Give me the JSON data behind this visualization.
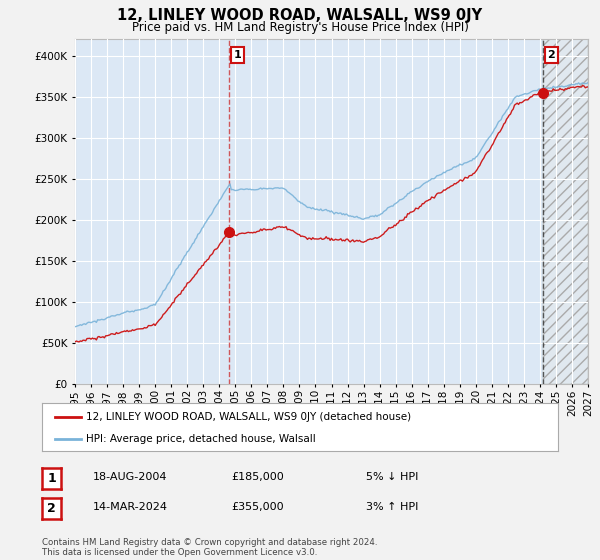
{
  "title": "12, LINLEY WOOD ROAD, WALSALL, WS9 0JY",
  "subtitle": "Price paid vs. HM Land Registry's House Price Index (HPI)",
  "hpi_label": "HPI: Average price, detached house, Walsall",
  "property_label": "12, LINLEY WOOD ROAD, WALSALL, WS9 0JY (detached house)",
  "sale1_date": "18-AUG-2004",
  "sale1_price": 185000,
  "sale1_pct": "5% ↓ HPI",
  "sale2_date": "14-MAR-2024",
  "sale2_price": 355000,
  "sale2_pct": "3% ↑ HPI",
  "footnote": "Contains HM Land Registry data © Crown copyright and database right 2024.\nThis data is licensed under the Open Government Licence v3.0.",
  "fig_bg": "#f2f2f2",
  "plot_bg": "#dce8f5",
  "grid_color": "#ffffff",
  "hpi_color": "#7ab3d9",
  "property_color": "#cc1111",
  "dashed_color": "#cc3333",
  "ylim": [
    0,
    420000
  ],
  "yticks": [
    0,
    50000,
    100000,
    150000,
    200000,
    250000,
    300000,
    350000,
    400000
  ],
  "start_year": 1995,
  "end_year": 2027
}
